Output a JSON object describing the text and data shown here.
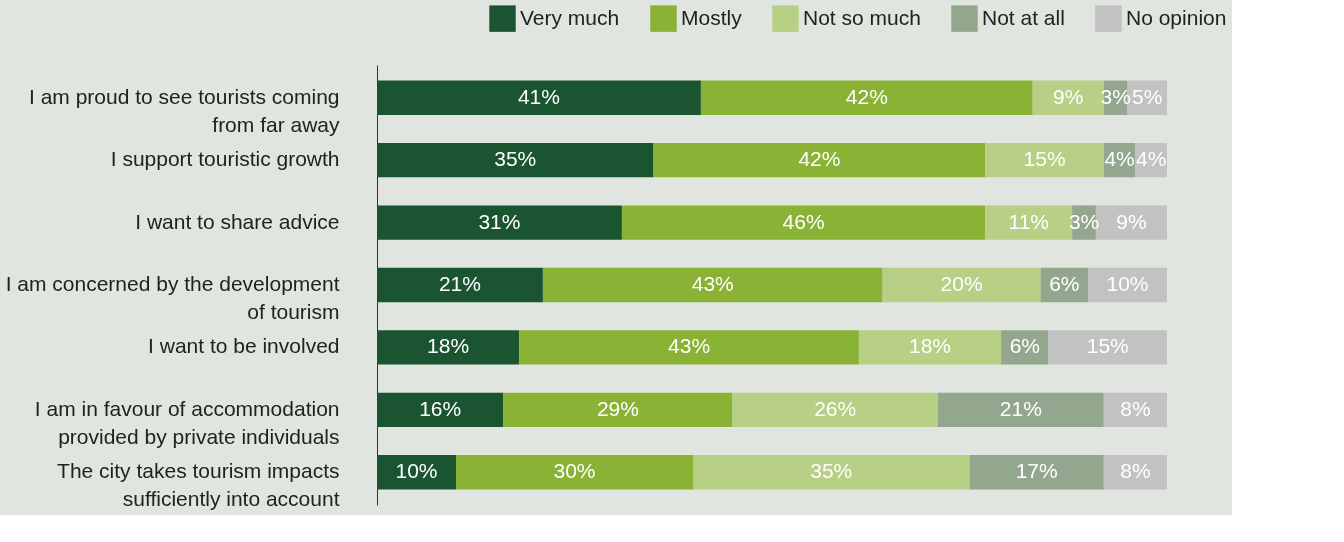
{
  "chart_data": {
    "type": "bar",
    "orientation": "horizontal",
    "stacked": true,
    "legend": "top right",
    "categories": [
      "I am proud to see tourists coming from far away",
      "I support touristic growth",
      "I want to share advice",
      "I am concerned by the development of tourism",
      "I want to be involved",
      "I am in favour of accommodation provided by private individuals",
      "The city takes tourism impacts sufficiently into account"
    ],
    "series": [
      {
        "name": "Very much",
        "color": "#1b5430",
        "values": [
          41,
          35,
          31,
          21,
          18,
          16,
          10
        ],
        "value_labels": [
          "41%",
          "35%",
          "31%",
          "21%",
          "18%",
          "16%",
          "10%"
        ]
      },
      {
        "name": "Mostly",
        "color": "#8ab235",
        "values": [
          42,
          42,
          46,
          43,
          43,
          29,
          30
        ],
        "value_labels": [
          "42%",
          "42%",
          "46%",
          "43%",
          "43%",
          "29%",
          "30%"
        ]
      },
      {
        "name": "Not so much",
        "color": "#b8cf86",
        "values": [
          9,
          15,
          11,
          20,
          18,
          26,
          35
        ],
        "value_labels": [
          "9%",
          "15%",
          "11%",
          "20%",
          "18%",
          "26%",
          "35%"
        ]
      },
      {
        "name": "Not at all",
        "color": "#93a68e",
        "values": [
          3,
          4,
          3,
          6,
          6,
          21,
          17
        ],
        "value_labels": [
          "3%",
          "4%",
          "3%",
          "6%",
          "6%",
          "21%",
          "17%"
        ]
      },
      {
        "name": "No opinion",
        "color": "#c2c2c2",
        "values": [
          5,
          4,
          9,
          10,
          15,
          8,
          8
        ],
        "value_labels": [
          "5%",
          "4%",
          "9%",
          "10%",
          "15%",
          "8%",
          "8%"
        ]
      }
    ]
  }
}
